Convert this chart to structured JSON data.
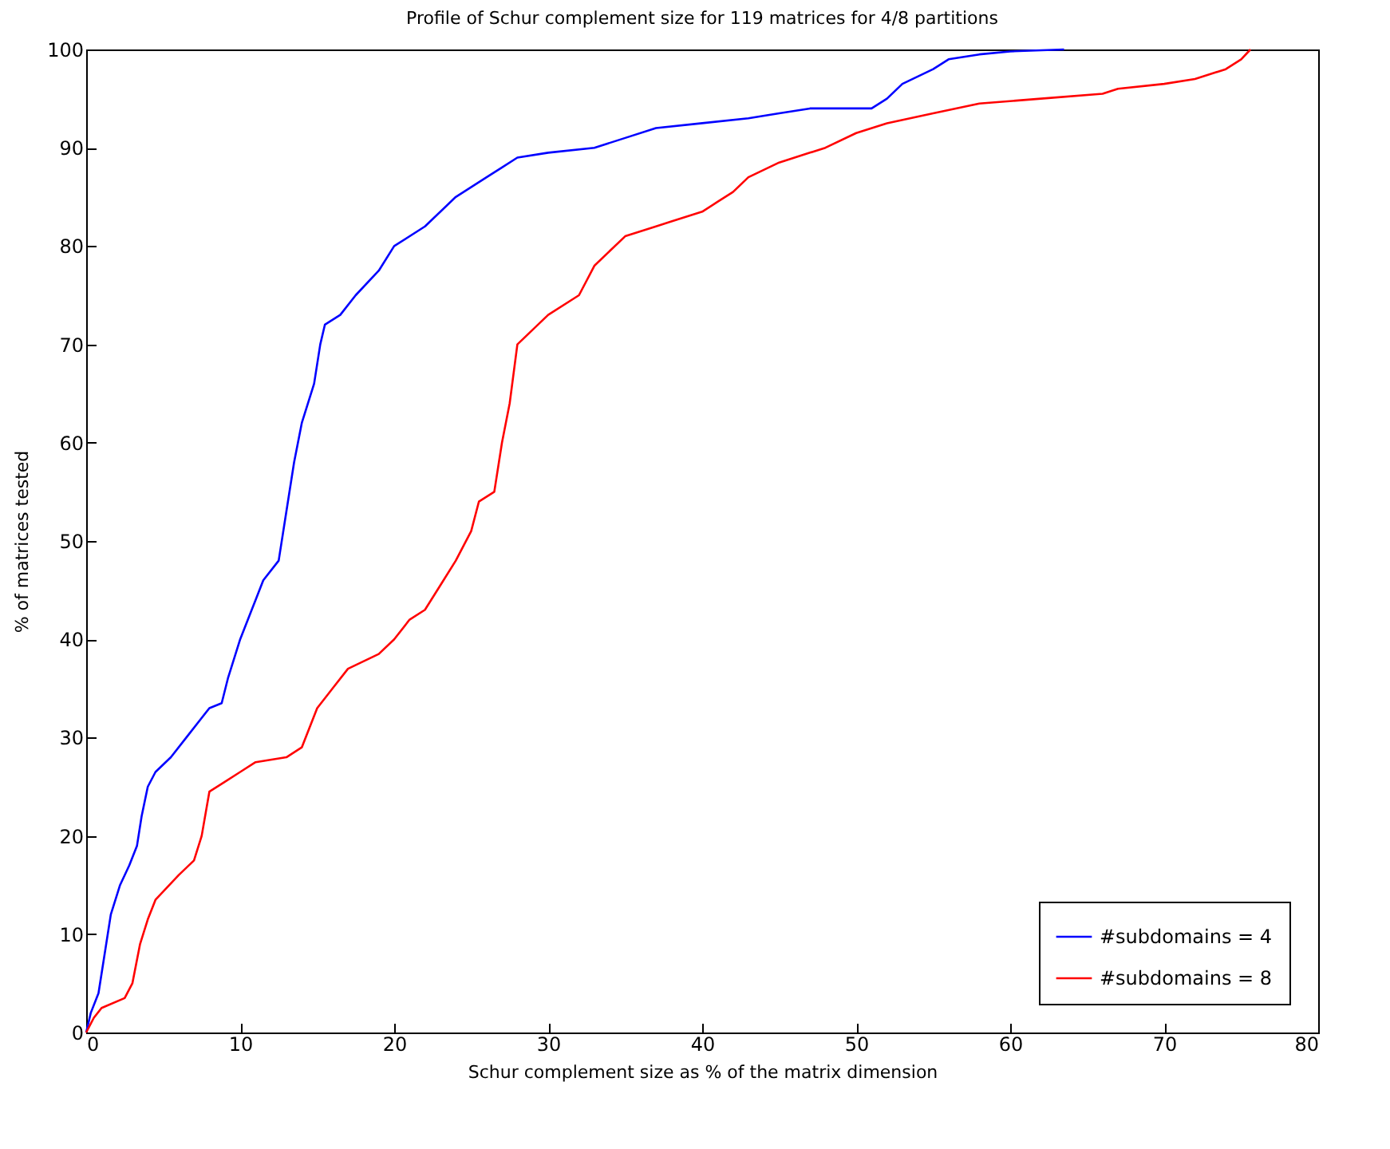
{
  "chart_data": {
    "type": "line",
    "title": "Profile of Schur complement size for 119 matrices for 4/8 partitions",
    "xlabel": "Schur complement size as % of the matrix dimension",
    "ylabel": "% of matrices tested",
    "xlim": [
      0,
      80
    ],
    "xticks": [
      0,
      10,
      20,
      30,
      40,
      50,
      60,
      70,
      80
    ],
    "ylim": [
      0,
      100
    ],
    "yticks": [
      0,
      10,
      20,
      30,
      40,
      50,
      60,
      70,
      80,
      90,
      100
    ],
    "grid": false,
    "legend": "bottom right",
    "marker": "none",
    "line_style": "solid",
    "series": [
      {
        "name": "#subdomains = 4",
        "color": "#0000ff",
        "x": [
          0,
          0.3,
          0.8,
          1.2,
          1.6,
          2.2,
          2.8,
          3.3,
          3.6,
          4,
          4.5,
          5.5,
          6.5,
          7.5,
          8,
          8.8,
          9.2,
          10,
          11,
          11.5,
          12.5,
          13,
          13.5,
          14,
          14.8,
          15.2,
          15.5,
          16.5,
          17.5,
          19,
          20,
          22,
          24,
          26,
          27,
          28,
          30,
          33,
          35,
          37,
          40,
          43,
          45,
          47,
          51,
          52,
          53,
          55,
          56,
          58,
          60,
          63.5
        ],
        "values": [
          0,
          2,
          4,
          8,
          12,
          15,
          17,
          19,
          22,
          25,
          26.5,
          28,
          30,
          32,
          33,
          33.5,
          36,
          40,
          44,
          46,
          48,
          53,
          58,
          62,
          66,
          70,
          72,
          73,
          75,
          77.5,
          80,
          82,
          85,
          87,
          88,
          89,
          89.5,
          90,
          91,
          92,
          92.5,
          93,
          93.5,
          94,
          94,
          95,
          96.5,
          98,
          99,
          99.5,
          99.8,
          100
        ]
      },
      {
        "name": "#subdomains = 8",
        "color": "#ff0000",
        "x": [
          0,
          0.5,
          1,
          2.5,
          3,
          3.5,
          4,
          4.5,
          6,
          7,
          7.5,
          8,
          9,
          10,
          11,
          13,
          14,
          15,
          16,
          17,
          19,
          20,
          21,
          22,
          23,
          24,
          25,
          25.5,
          26.5,
          27,
          27.5,
          28,
          29,
          30,
          32,
          33,
          35,
          37,
          38,
          40,
          41,
          42,
          43,
          45,
          47,
          48,
          50,
          52,
          55,
          58,
          62,
          66,
          67,
          70,
          72,
          74,
          75,
          75.6
        ],
        "values": [
          0,
          1.5,
          2.5,
          3.5,
          5,
          9,
          11.5,
          13.5,
          16,
          17.5,
          20,
          24.5,
          25.5,
          26.5,
          27.5,
          28,
          29,
          33,
          35,
          37,
          38.5,
          40,
          42,
          43,
          45.5,
          48,
          51,
          54,
          55,
          60,
          64,
          70,
          71.5,
          73,
          75,
          78,
          81,
          82,
          82.5,
          83.5,
          84.5,
          85.5,
          87,
          88.5,
          89.5,
          90,
          91.5,
          92.5,
          93.5,
          94.5,
          95,
          95.5,
          96,
          96.5,
          97,
          98,
          99,
          100
        ]
      }
    ]
  }
}
